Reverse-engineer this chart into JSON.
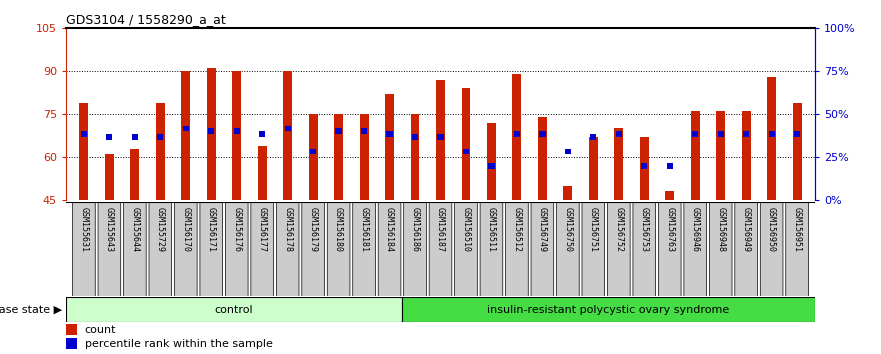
{
  "title": "GDS3104 / 1558290_a_at",
  "samples": [
    "GSM155631",
    "GSM155643",
    "GSM155644",
    "GSM155729",
    "GSM156170",
    "GSM156171",
    "GSM156176",
    "GSM156177",
    "GSM156178",
    "GSM156179",
    "GSM156180",
    "GSM156181",
    "GSM156184",
    "GSM156186",
    "GSM156187",
    "GSM156510",
    "GSM156511",
    "GSM156512",
    "GSM156749",
    "GSM156750",
    "GSM156751",
    "GSM156752",
    "GSM156753",
    "GSM156763",
    "GSM156946",
    "GSM156948",
    "GSM156949",
    "GSM156950",
    "GSM156951"
  ],
  "count_values": [
    79,
    61,
    63,
    79,
    90,
    91,
    90,
    64,
    90,
    75,
    75,
    75,
    82,
    75,
    87,
    84,
    72,
    89,
    74,
    50,
    67,
    70,
    67,
    48,
    76,
    76,
    76,
    88,
    79
  ],
  "percentile_values": [
    68,
    67,
    67,
    67,
    70,
    69,
    69,
    68,
    70,
    62,
    69,
    69,
    68,
    67,
    67,
    62,
    57,
    68,
    68,
    62,
    67,
    68,
    57,
    57,
    68,
    68,
    68,
    68,
    68
  ],
  "control_count": 13,
  "disease_count": 16,
  "ymin": 45,
  "ymax": 105,
  "yticks": [
    45,
    60,
    75,
    90,
    105
  ],
  "right_ytick_vals": [
    0,
    25,
    50,
    75,
    100
  ],
  "right_ylabels": [
    "0%",
    "25%",
    "50%",
    "75%",
    "100%"
  ],
  "bar_color": "#CC2200",
  "percentile_color": "#0000CC",
  "control_bg": "#CCFFCC",
  "disease_bg": "#44DD44",
  "label_box_color": "#CCCCCC",
  "control_label": "control",
  "disease_label": "insulin-resistant polycystic ovary syndrome",
  "disease_state_label": "disease state",
  "legend_count_label": "count",
  "legend_percentile_label": "percentile rank within the sample"
}
